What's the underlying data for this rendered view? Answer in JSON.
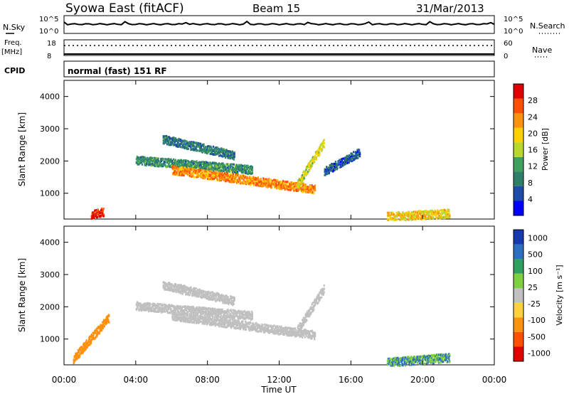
{
  "header": {
    "title": "Syowa East (fitACF)",
    "beam": "Beam 15",
    "date": "31/Mar/2013"
  },
  "panels": {
    "nsky_label": "N.Sky",
    "nsky_top": "10^5",
    "nsky_bottom": "10^0",
    "nsearch_label": "N.Search",
    "nsearch_top": "10^5",
    "nsearch_bottom": "10^0",
    "freq_label": "Freq.",
    "freq_unit": "[MHz]",
    "freq_top": "18",
    "freq_bottom": "8",
    "nave_label": "Nave",
    "nave_top": "60",
    "nave_bottom": "0",
    "cpid_label": "CPID",
    "cpid_text": "normal (fast) 151 RF"
  },
  "colors": {
    "power_scale": [
      "#0000ff",
      "#1f4ca8",
      "#2f7f6a",
      "#3fa060",
      "#b8d830",
      "#ffd000",
      "#ff9010",
      "#ff5000",
      "#e00000"
    ],
    "velocity_scale": [
      "#1838b0",
      "#2c6fc0",
      "#2fa060",
      "#7fd040",
      "#c0c0c0",
      "#ffd040",
      "#ff9010",
      "#ff5000",
      "#e00000"
    ]
  },
  "chart_data": [
    {
      "type": "heatmap",
      "name": "power",
      "ylabel": "Slant Range [km]",
      "y_ticks": [
        "1000",
        "2000",
        "3000",
        "4000"
      ],
      "ylim": [
        200,
        4500
      ],
      "xlim": [
        "00:00",
        "24:00"
      ],
      "colorbar": {
        "label": "Power [dB]",
        "ticks": [
          "4",
          "8",
          "12",
          "16",
          "20",
          "24",
          "28"
        ],
        "range": [
          0,
          30
        ]
      },
      "echo_bands": [
        {
          "t_start": 4.0,
          "t_end": 10.5,
          "r_start": 2050,
          "r_end": 1750,
          "value": 10
        },
        {
          "t_start": 6.0,
          "t_end": 14.0,
          "r_start": 1750,
          "r_end": 1150,
          "value": 22
        },
        {
          "t_start": 5.5,
          "t_end": 9.5,
          "r_start": 2700,
          "r_end": 2200,
          "value": 8
        },
        {
          "t_start": 13.0,
          "t_end": 14.5,
          "r_start": 1300,
          "r_end": 2600,
          "value": 16
        },
        {
          "t_start": 14.5,
          "t_end": 16.5,
          "r_start": 1700,
          "r_end": 2300,
          "value": 6
        },
        {
          "t_start": 18.0,
          "t_end": 21.5,
          "r_start": 300,
          "r_end": 400,
          "value": 18
        },
        {
          "t_start": 1.5,
          "t_end": 2.2,
          "r_start": 350,
          "r_end": 450,
          "value": 28
        }
      ]
    },
    {
      "type": "heatmap",
      "name": "velocity",
      "ylabel": "Slant Range [km]",
      "y_ticks": [
        "1000",
        "2000",
        "3000",
        "4000"
      ],
      "ylim": [
        200,
        4500
      ],
      "xlim": [
        "00:00",
        "24:00"
      ],
      "xlabel": "Time UT",
      "x_ticks": [
        "00:00",
        "04:00",
        "08:00",
        "12:00",
        "16:00",
        "20:00",
        "00:00"
      ],
      "colorbar": {
        "label": "Velocity [m s⁻¹]",
        "ticks": [
          "1000",
          "500",
          "100",
          "25",
          "-25",
          "-100",
          "-500",
          "-1000"
        ]
      },
      "echo_bands": [
        {
          "t_start": 4.0,
          "t_end": 10.5,
          "r_start": 2050,
          "r_end": 1750,
          "value": 0
        },
        {
          "t_start": 6.0,
          "t_end": 14.0,
          "r_start": 1750,
          "r_end": 1150,
          "value": 0
        },
        {
          "t_start": 5.5,
          "t_end": 9.5,
          "r_start": 2700,
          "r_end": 2200,
          "value": 0
        },
        {
          "t_start": 13.0,
          "t_end": 14.5,
          "r_start": 1300,
          "r_end": 2600,
          "value": 0
        },
        {
          "t_start": 18.0,
          "t_end": 21.5,
          "r_start": 300,
          "r_end": 450,
          "value": 100
        },
        {
          "t_start": 0.5,
          "t_end": 2.5,
          "r_start": 400,
          "r_end": 1700,
          "value": -300
        }
      ]
    }
  ]
}
